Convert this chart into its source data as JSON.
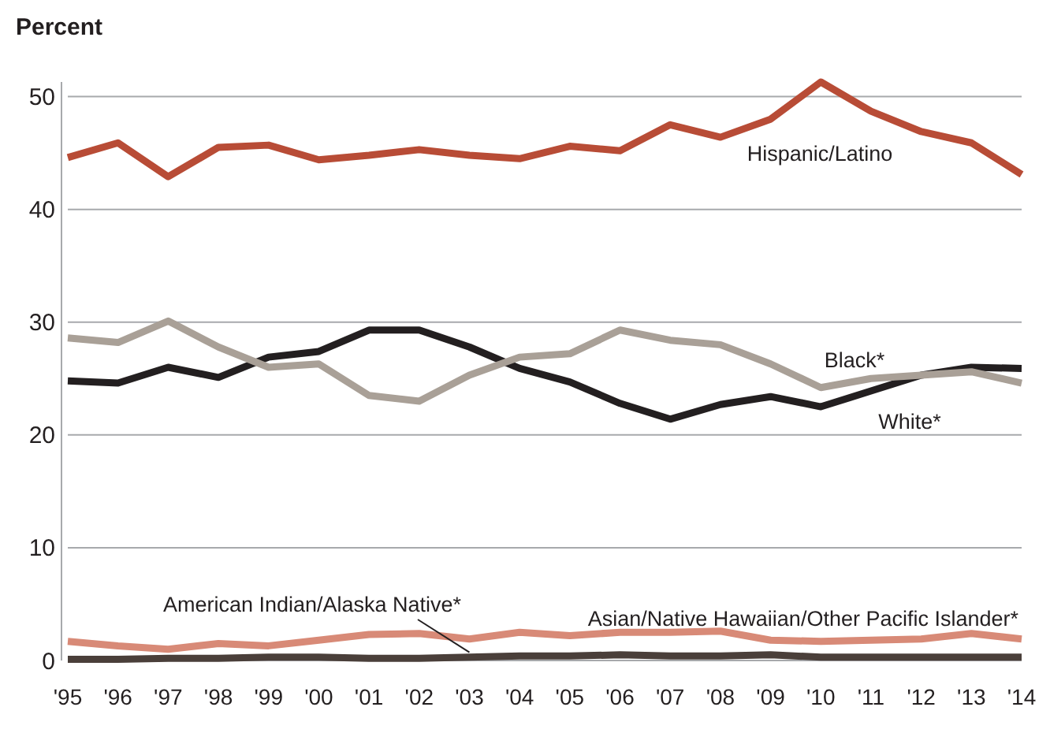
{
  "chart_data": {
    "type": "line",
    "ylabel": "Percent",
    "categories": [
      "'95",
      "'96",
      "'97",
      "'98",
      "'99",
      "'00",
      "'01",
      "'02",
      "'03",
      "'04",
      "'05",
      "'06",
      "'07",
      "'08",
      "'09",
      "'10",
      "'11",
      "'12",
      "'13",
      "'14"
    ],
    "series": [
      {
        "name": "Hispanic/Latino",
        "color": "#b84c36",
        "values": [
          44.6,
          45.9,
          42.9,
          45.5,
          45.7,
          44.4,
          44.8,
          45.3,
          44.8,
          44.5,
          45.6,
          45.2,
          47.5,
          46.4,
          48.0,
          51.3,
          48.7,
          46.9,
          45.9,
          43.1
        ]
      },
      {
        "name": "Black*",
        "color": "#a9a097",
        "values": [
          28.6,
          28.2,
          30.1,
          27.8,
          26.0,
          26.3,
          23.5,
          23.0,
          25.3,
          26.9,
          27.2,
          29.3,
          28.4,
          28.0,
          26.3,
          24.2,
          25.0,
          25.3,
          25.6,
          24.6
        ]
      },
      {
        "name": "White*",
        "color": "#231f20",
        "values": [
          24.8,
          24.6,
          26.0,
          25.1,
          26.9,
          27.4,
          29.3,
          29.3,
          27.8,
          25.9,
          24.7,
          22.8,
          21.4,
          22.7,
          23.4,
          22.5,
          23.9,
          25.3,
          26.0,
          25.9
        ]
      },
      {
        "name": "Asian/Native Hawaiian/Other Pacific Islander*",
        "color": "#d88a77",
        "values": [
          1.7,
          1.3,
          1.0,
          1.5,
          1.3,
          1.8,
          2.3,
          2.4,
          1.9,
          2.5,
          2.2,
          2.5,
          2.5,
          2.6,
          1.8,
          1.7,
          1.8,
          1.9,
          2.4,
          1.9
        ]
      },
      {
        "name": "American Indian/Alaska Native*",
        "color": "#4a3f3a",
        "values": [
          0.1,
          0.1,
          0.2,
          0.2,
          0.3,
          0.3,
          0.2,
          0.2,
          0.3,
          0.4,
          0.4,
          0.5,
          0.4,
          0.4,
          0.5,
          0.3,
          0.3,
          0.3,
          0.3,
          0.3
        ]
      }
    ],
    "ylim": [
      0,
      51.3
    ],
    "yticks": [
      0,
      10,
      20,
      30,
      40,
      50
    ],
    "grid": "y",
    "marker": "none",
    "line_style": "solid"
  }
}
